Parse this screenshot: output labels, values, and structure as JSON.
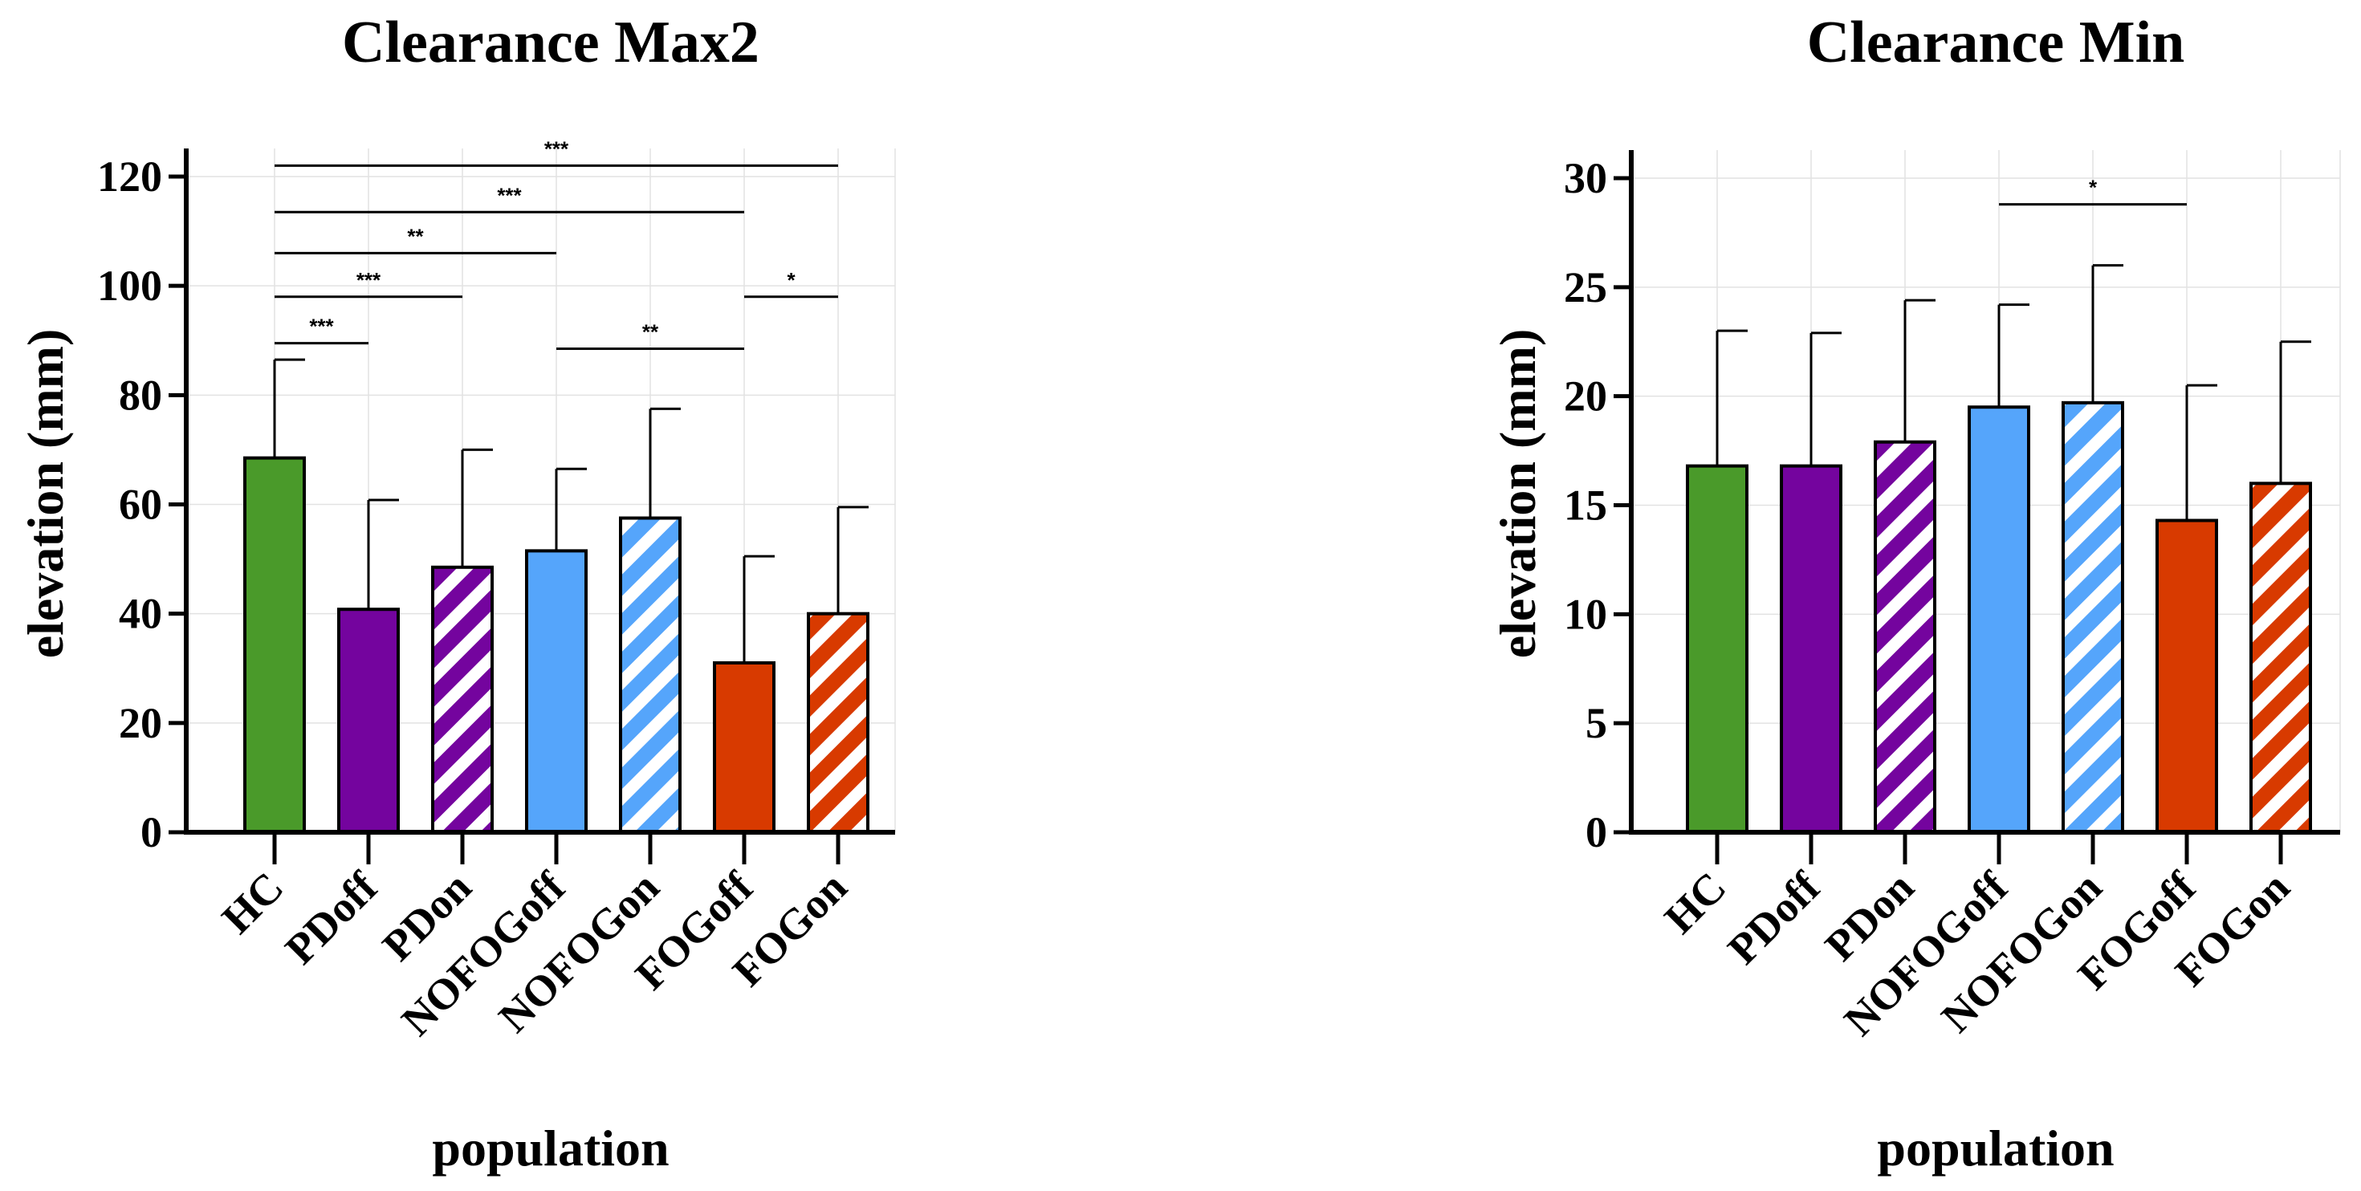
{
  "colors": {
    "HC": "#4a9a2a",
    "PD": "#74049e",
    "NOFOG": "#55a5fb",
    "FOG": "#d83a00",
    "grid": "#e2e2e2",
    "axis": "#000000"
  },
  "chart_data": [
    {
      "type": "bar",
      "title": "Clearance Max2",
      "xlabel": "population",
      "ylabel": "elevation (mm)",
      "ylim": [
        0,
        125
      ],
      "yticks": [
        0,
        20,
        40,
        60,
        80,
        100,
        120
      ],
      "categories": [
        "HC",
        "PDoff",
        "PDon",
        "NOFOGoff",
        "NOFOGon",
        "FOGoff",
        "FOGon"
      ],
      "values": [
        68.5,
        40.8,
        48.5,
        51.5,
        57.5,
        31,
        40
      ],
      "errors": [
        18,
        20,
        21.5,
        15,
        20,
        19.5,
        19.5
      ],
      "hatched": [
        false,
        false,
        true,
        false,
        true,
        false,
        true
      ],
      "color_keys": [
        "HC",
        "PD",
        "PD",
        "NOFOG",
        "NOFOG",
        "FOG",
        "FOG"
      ],
      "significance": [
        {
          "from": 0,
          "to": 6,
          "label": "***",
          "y": 122
        },
        {
          "from": 0,
          "to": 5,
          "label": "***",
          "y": 113.5
        },
        {
          "from": 0,
          "to": 3,
          "label": "**",
          "y": 106
        },
        {
          "from": 0,
          "to": 2,
          "label": "***",
          "y": 98
        },
        {
          "from": 5,
          "to": 6,
          "label": "*",
          "y": 98
        },
        {
          "from": 0,
          "to": 1,
          "label": "***",
          "y": 89.5
        },
        {
          "from": 3,
          "to": 5,
          "label": "**",
          "y": 88.5
        }
      ]
    },
    {
      "type": "bar",
      "title": "Clearance Min",
      "xlabel": "population",
      "ylabel": "elevation (mm)",
      "ylim": [
        0,
        30
      ],
      "yticks": [
        0,
        5,
        10,
        15,
        20,
        25,
        30
      ],
      "categories": [
        "HC",
        "PDoff",
        "PDon",
        "NOFOGoff",
        "NOFOGon",
        "FOGoff",
        "FOGon"
      ],
      "values": [
        16.8,
        16.8,
        17.9,
        19.5,
        19.7,
        14.3,
        16
      ],
      "errors": [
        6.2,
        6.1,
        6.5,
        4.7,
        6.3,
        6.2,
        6.5
      ],
      "hatched": [
        false,
        false,
        true,
        false,
        true,
        false,
        true
      ],
      "color_keys": [
        "HC",
        "PD",
        "PD",
        "NOFOG",
        "NOFOG",
        "FOG",
        "FOG"
      ],
      "significance": [
        {
          "from": 3,
          "to": 5,
          "label": "*",
          "y": 28.8
        }
      ]
    }
  ]
}
